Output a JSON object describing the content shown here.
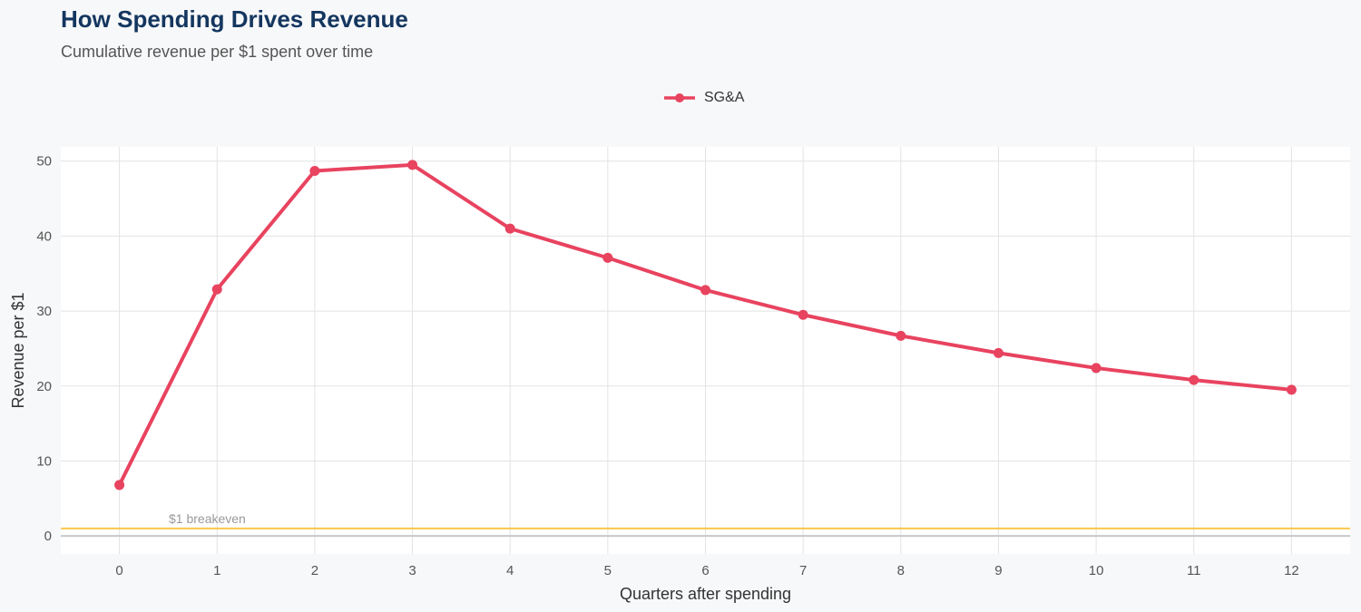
{
  "chart_data": {
    "type": "line",
    "title": "How Spending Drives Revenue",
    "subtitle": "Cumulative revenue per $1 spent over time",
    "xlabel": "Quarters after spending",
    "ylabel": "Revenue per $1",
    "x": [
      0,
      1,
      2,
      3,
      4,
      5,
      6,
      7,
      8,
      9,
      10,
      11,
      12
    ],
    "series": [
      {
        "name": "SG&A",
        "color": "#e8435f",
        "values": [
          6.8,
          32.9,
          48.7,
          49.5,
          41.0,
          37.1,
          32.8,
          29.5,
          26.7,
          24.4,
          22.4,
          20.8,
          19.5
        ]
      }
    ],
    "xlim": [
      -0.6,
      12.6
    ],
    "ylim": [
      -2.4,
      51.9
    ],
    "xticks": [
      0,
      1,
      2,
      3,
      4,
      5,
      6,
      7,
      8,
      9,
      10,
      11,
      12
    ],
    "yticks": [
      0,
      10,
      20,
      30,
      40,
      50
    ],
    "grid": true,
    "legend_position": "top-center",
    "reference_line": {
      "y": 1,
      "label": "$1 breakeven",
      "color": "#f9c74f"
    },
    "zero_line_color": "#c8c8c8"
  }
}
